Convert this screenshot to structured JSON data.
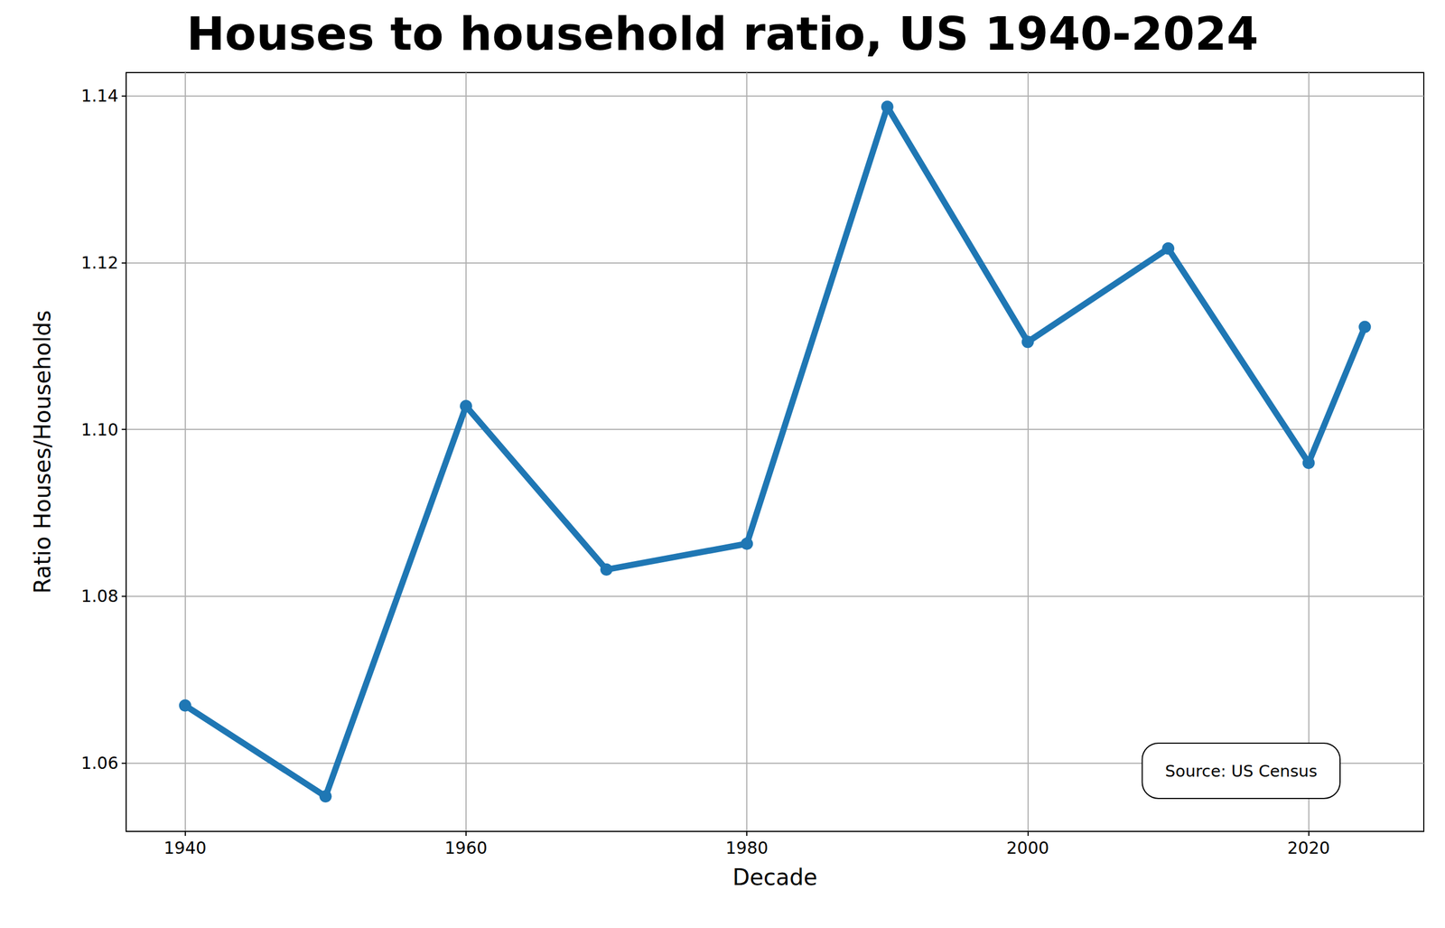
{
  "chart_data": {
    "type": "line",
    "title": "Houses to household ratio, US 1940-2024",
    "x_label": "Decade",
    "y_label": "Ratio Houses/Households",
    "annotation": "Source: US Census",
    "x": [
      1940,
      1950,
      1960,
      1970,
      1980,
      1990,
      2000,
      2010,
      2020,
      2024
    ],
    "values": [
      1.0669,
      1.056,
      1.1028,
      1.0832,
      1.0863,
      1.1387,
      1.1105,
      1.1217,
      1.096,
      1.1123
    ],
    "color": "#1f77b4",
    "marker": "circle",
    "line_style": "solid",
    "xlim": [
      1935.8,
      2028.2
    ],
    "xticks": [
      1940,
      1960,
      1980,
      2000,
      2020
    ],
    "ylim": [
      1.0518,
      1.1428
    ],
    "yticks": [
      1.06,
      1.08,
      {
        "value": 1.1,
        "label": "1.10"
      },
      1.12,
      1.14
    ],
    "grid": true
  }
}
